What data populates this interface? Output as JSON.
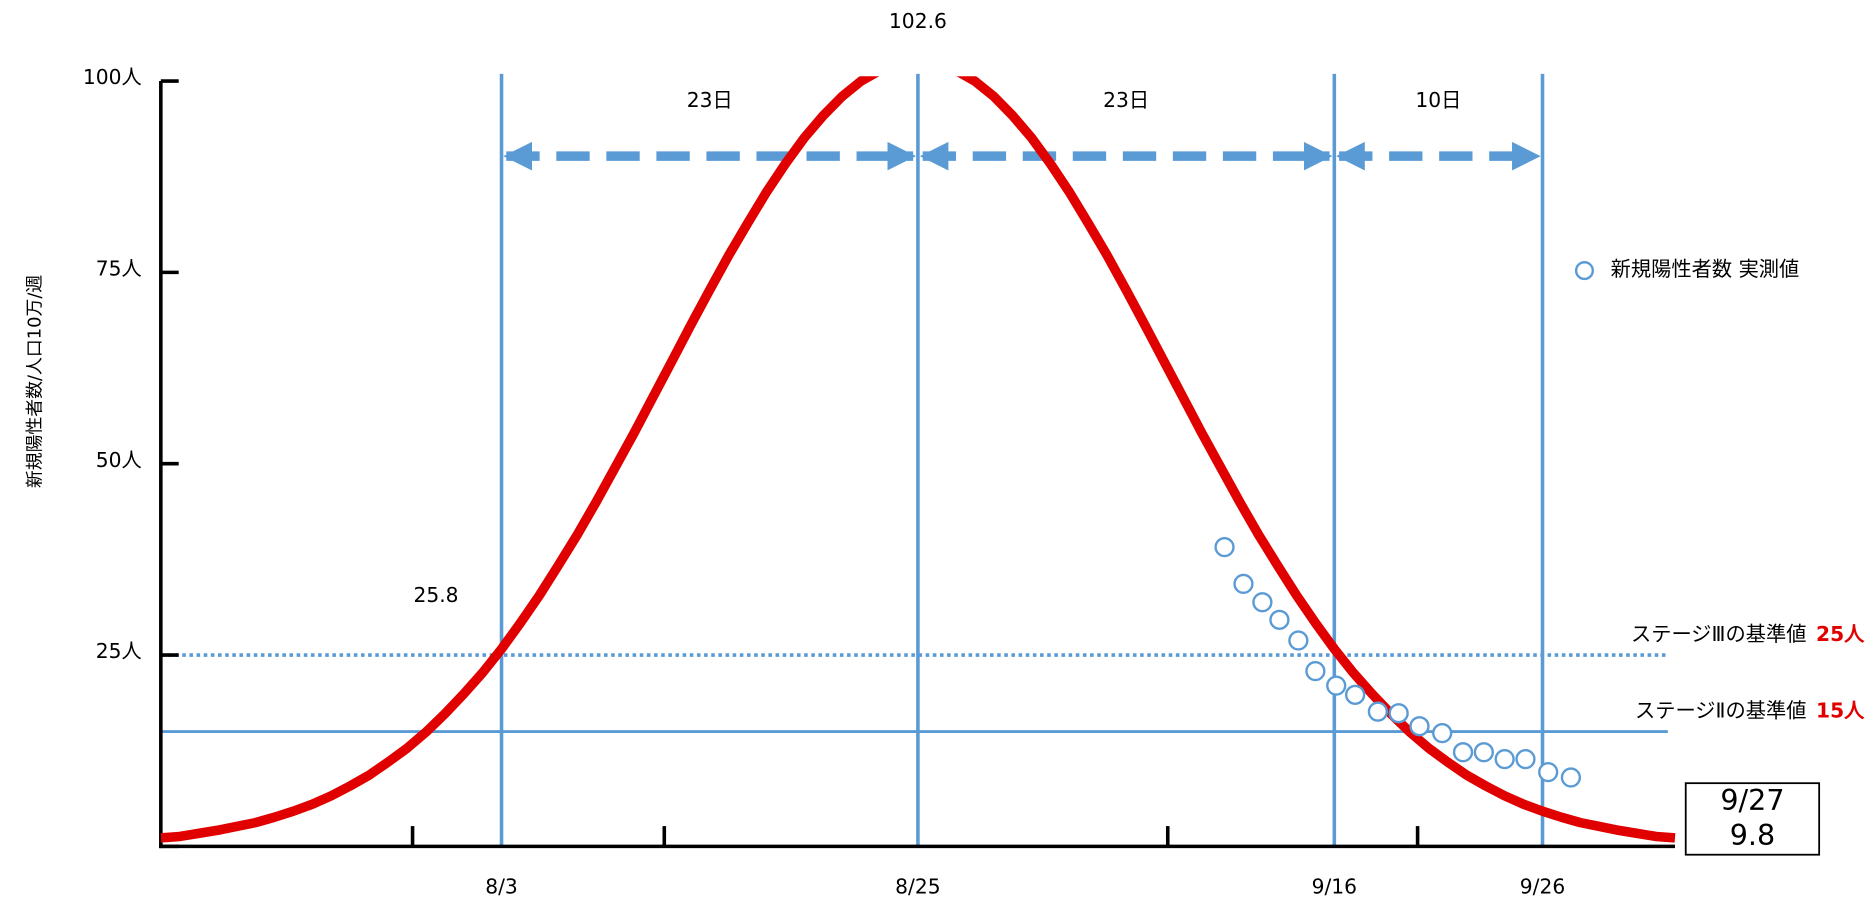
{
  "chart_data": {
    "type": "line",
    "y_label": "新規陽性者数/人口10万/週",
    "xlim": [
      -18,
      62
    ],
    "ylim": [
      0,
      100
    ],
    "xticks": [
      {
        "value": 0,
        "label": "8/3"
      },
      {
        "value": 22,
        "label": "8/25"
      },
      {
        "value": 44,
        "label": "9/16"
      },
      {
        "value": 55,
        "label": "9/26"
      }
    ],
    "minor_xticks": [
      -4.7,
      8.6,
      35.2,
      48.4
    ],
    "yticks": [
      0,
      {
        "value": 25,
        "label": "25人"
      },
      {
        "value": 50,
        "label": "50人"
      },
      {
        "value": 75,
        "label": "75人"
      },
      {
        "value": 100,
        "label": "100人"
      }
    ],
    "series": [
      {
        "type": "line",
        "color": "#e00000",
        "x": [
          -18,
          -17,
          -16,
          -15,
          -14,
          -13,
          -12,
          -11,
          -10,
          -9,
          -8,
          -7,
          -6,
          -5,
          -4,
          -3,
          -2,
          -1,
          0,
          1,
          2,
          3,
          4,
          5,
          6,
          7,
          8,
          9,
          10,
          11,
          12,
          13,
          14,
          15,
          16,
          17,
          18,
          19,
          20,
          21,
          22,
          23,
          24,
          25,
          26,
          27,
          28,
          29,
          30,
          31,
          32,
          33,
          34,
          35,
          36,
          37,
          38,
          39,
          40,
          41,
          42,
          43,
          44,
          45,
          46,
          47,
          48,
          49,
          50,
          51,
          52,
          53,
          54,
          55,
          56,
          57,
          58,
          59,
          60,
          61,
          62
        ],
        "values": [
          1.1,
          1.3,
          1.7,
          2.1,
          2.6,
          3.1,
          3.8,
          4.6,
          5.5,
          6.6,
          7.9,
          9.3,
          11.0,
          12.8,
          14.9,
          17.3,
          19.9,
          22.7,
          25.8,
          29.2,
          32.8,
          36.7,
          40.7,
          45.0,
          49.5,
          54.0,
          58.7,
          63.4,
          68.1,
          72.7,
          77.2,
          81.4,
          85.5,
          89.2,
          92.6,
          95.5,
          98.0,
          100.0,
          101.4,
          102.3,
          102.6,
          102.3,
          101.4,
          100.0,
          98.0,
          95.5,
          92.6,
          89.2,
          85.5,
          81.4,
          77.2,
          72.7,
          68.1,
          63.4,
          58.7,
          54.0,
          49.5,
          45.0,
          40.7,
          36.7,
          32.8,
          29.2,
          25.8,
          22.7,
          19.9,
          17.3,
          14.9,
          12.8,
          11.0,
          9.3,
          7.9,
          6.6,
          5.5,
          4.6,
          3.8,
          3.1,
          2.6,
          2.1,
          1.7,
          1.3,
          1.1
        ]
      },
      {
        "type": "scatter",
        "name": "新規陽性者数 実測値",
        "color": "#5b9bd5",
        "x": [
          38.2,
          39.2,
          40.2,
          41.1,
          42.1,
          43.0,
          44.1,
          45.1,
          46.3,
          47.4,
          48.5,
          49.7,
          50.8,
          51.9,
          53.0,
          54.1,
          55.3,
          56.5
        ],
        "values": [
          39.1,
          34.3,
          31.9,
          29.6,
          26.9,
          22.9,
          21.0,
          19.8,
          17.6,
          17.4,
          15.7,
          14.8,
          12.3,
          12.3,
          11.4,
          11.4,
          9.7,
          9.0
        ]
      }
    ],
    "reference_lines": [
      {
        "value": 25,
        "label": "ステージⅢの基準値",
        "value_label": "25人",
        "style": "dotted",
        "color": "#5b9bd5"
      },
      {
        "value": 15,
        "label": "ステージⅡの基準値",
        "value_label": "15人",
        "style": "solid",
        "color": "#5b9bd5"
      }
    ],
    "spans": [
      {
        "from": 0,
        "to": 22,
        "label": "23日"
      },
      {
        "from": 22,
        "to": 44,
        "label": "23日"
      },
      {
        "from": 44,
        "to": 55,
        "label": "10日"
      }
    ],
    "point_labels": [
      {
        "x": 22,
        "y": 102.6,
        "label": "102.6"
      },
      {
        "x": 0,
        "y": 25.8,
        "label": "25.8"
      }
    ],
    "callout": {
      "date": "9/27",
      "value": 9.8
    }
  }
}
